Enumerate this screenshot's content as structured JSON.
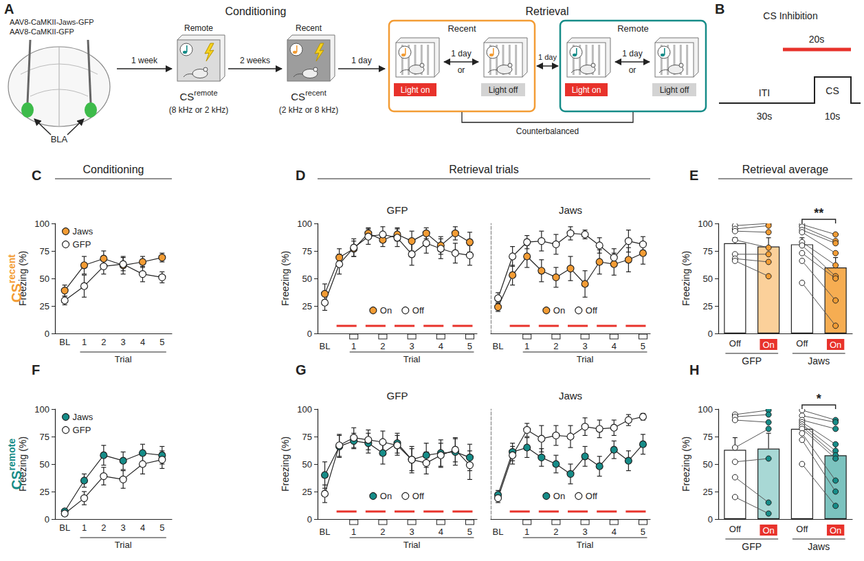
{
  "figure": {
    "column_heads": [
      "Conditioning",
      "Retrieval trials",
      "Retrieval average"
    ],
    "row_labels": [
      {
        "text": "CS",
        "sup": "recent",
        "color": "#f39c34"
      },
      {
        "text": "CS",
        "sup": "remote",
        "color": "#168c88"
      }
    ]
  },
  "diagram": {
    "panel_a": {
      "letter": "A",
      "viruses": [
        "AAV8-CaMKII-Jaws-GFP",
        "AAV8-CaMKII-GFP"
      ],
      "region": "BLA",
      "conditioning": {
        "title": "Conditioning",
        "sessions": [
          {
            "label": "Remote",
            "cs": "CS",
            "sup": "remote",
            "tones": "(8 kHz or 2 kHz)",
            "color": "#168c88"
          },
          {
            "label": "Recent",
            "cs": "CS",
            "sup": "recent",
            "tones": "(2 kHz or 8 kHz)",
            "color": "#f39c34"
          }
        ]
      },
      "intervals": [
        "1 week",
        "2 weeks",
        "1 day"
      ],
      "retrieval": {
        "title": "Retrieval",
        "between": "1 day",
        "blocks": [
          {
            "label": "Recent",
            "color": "#f39c34"
          },
          {
            "label": "Remote",
            "color": "#168c88"
          }
        ],
        "light_on": "Light on",
        "light_off": "Light off",
        "gap": "1 day",
        "or": "or",
        "counterbalanced": "Counterbalanced"
      }
    },
    "panel_b": {
      "letter": "B",
      "title": "CS Inhibition",
      "light": "20s",
      "epochs": [
        {
          "label": "ITI",
          "duration": "30s"
        },
        {
          "label": "CS",
          "duration": "10s"
        }
      ]
    }
  },
  "chart_data": [
    {
      "letter": "C",
      "type": "line",
      "categories": [
        "BL",
        "1",
        "2",
        "3",
        "4",
        "5"
      ],
      "x_label": "Trial",
      "y_label": "Freezing (%)",
      "ylim": [
        0,
        100
      ],
      "yticks": [
        0,
        25,
        50,
        75,
        100
      ],
      "grid": false,
      "legend": "upper left",
      "series": [
        {
          "name": "Jaws",
          "color": "#f39c34",
          "marker": "circle",
          "values": [
            39,
            62,
            68,
            62,
            65,
            69
          ],
          "errors": [
            5,
            8,
            7,
            8,
            5,
            4
          ]
        },
        {
          "name": "GFP",
          "color": "#ffffff",
          "marker": "circle",
          "values": [
            30,
            43,
            61,
            63,
            54,
            51
          ],
          "errors": [
            4,
            10,
            7,
            6,
            7,
            5
          ]
        }
      ]
    },
    {
      "letter": "D",
      "type": "line",
      "title": "GFP",
      "categories": [
        "BL",
        null,
        "1",
        null,
        "2",
        null,
        "3",
        null,
        "4",
        null,
        "5"
      ],
      "x_label": "Trial",
      "y_label": "Freezing (%)",
      "ylim": [
        0,
        100
      ],
      "yticks": [
        0,
        25,
        50,
        75,
        100
      ],
      "grid": false,
      "legend": "lower center",
      "series": [
        {
          "name": "On",
          "color": "#f39c34",
          "marker": "circle",
          "values": [
            36,
            69,
            77,
            91,
            85,
            90,
            84,
            91,
            80,
            91,
            83
          ],
          "errors": [
            9,
            8,
            7,
            5,
            6,
            6,
            9,
            5,
            8,
            6,
            9
          ]
        },
        {
          "name": "Off",
          "color": "#ffffff",
          "marker": "circle",
          "values": [
            28,
            63,
            78,
            88,
            90,
            87,
            72,
            82,
            77,
            73,
            71
          ],
          "errors": [
            7,
            9,
            8,
            7,
            7,
            8,
            10,
            9,
            9,
            9,
            9
          ]
        }
      ]
    },
    {
      "type": "line",
      "title": "Jaws",
      "categories": [
        "BL",
        null,
        "1",
        null,
        "2",
        null,
        "3",
        null,
        "4",
        null,
        "5"
      ],
      "x_label": "Trial",
      "ylim": [
        0,
        100
      ],
      "tick_labels": "x",
      "grid": false,
      "legend": "lower center",
      "series": [
        {
          "name": "On",
          "color": "#f39c34",
          "marker": "circle",
          "values": [
            24,
            53,
            70,
            57,
            51,
            59,
            45,
            65,
            63,
            67,
            73
          ],
          "errors": [
            4,
            9,
            10,
            10,
            9,
            11,
            12,
            11,
            10,
            11,
            10
          ]
        },
        {
          "name": "Off",
          "color": "#ffffff",
          "marker": "circle",
          "values": [
            32,
            70,
            83,
            84,
            81,
            91,
            90,
            80,
            69,
            84,
            81
          ],
          "errors": [
            5,
            9,
            6,
            9,
            9,
            6,
            4,
            7,
            8,
            10,
            7
          ]
        }
      ]
    },
    {
      "letter": "E",
      "type": "bar",
      "categories": [
        "Off",
        "On",
        "Off",
        "On"
      ],
      "groups": [
        "GFP",
        "Jaws"
      ],
      "y_label": "Freezing (%)",
      "ylim": [
        0,
        100
      ],
      "yticks": [
        0,
        25,
        50,
        75,
        100
      ],
      "grid": false,
      "values": [
        82,
        79,
        81,
        60
      ],
      "errors": [
        5,
        8,
        6,
        9
      ],
      "colors": [
        "#ffffff",
        "#fbd09a",
        "#ffffff",
        "#f6ad52"
      ],
      "color": "#f39c34",
      "points": [
        [
          98,
          95,
          93,
          85,
          72,
          68,
          66
        ],
        [
          100,
          98,
          92,
          78,
          72,
          65,
          52
        ],
        [
          99,
          97,
          94,
          92,
          83,
          80,
          73,
          66,
          46
        ],
        [
          90,
          84,
          82,
          73,
          62,
          52,
          50,
          30,
          7
        ]
      ],
      "significance": [
        {
          "group": "Jaws",
          "label": "**"
        }
      ]
    },
    {
      "letter": "F",
      "type": "line",
      "categories": [
        "BL",
        "1",
        "2",
        "3",
        "4",
        "5"
      ],
      "x_label": "Trial",
      "y_label": "Freezing (%)",
      "ylim": [
        0,
        100
      ],
      "yticks": [
        0,
        25,
        50,
        75,
        100
      ],
      "grid": false,
      "legend": "upper left",
      "series": [
        {
          "name": "Jaws",
          "color": "#168c88",
          "marker": "circle",
          "values": [
            7,
            35,
            58,
            53,
            60,
            58
          ],
          "errors": [
            2,
            6,
            9,
            8,
            8,
            8
          ]
        },
        {
          "name": "GFP",
          "color": "#ffffff",
          "marker": "circle",
          "values": [
            5,
            19,
            39,
            36,
            50,
            54
          ],
          "errors": [
            2,
            6,
            8,
            8,
            9,
            8
          ]
        }
      ]
    },
    {
      "letter": "G",
      "type": "line",
      "title": "GFP",
      "categories": [
        "BL",
        null,
        "1",
        null,
        "2",
        null,
        "3",
        null,
        "4",
        null,
        "5"
      ],
      "x_label": "Trial",
      "y_label": "Freezing (%)",
      "ylim": [
        0,
        100
      ],
      "yticks": [
        0,
        25,
        50,
        75,
        100
      ],
      "grid": false,
      "legend": "lower center",
      "series": [
        {
          "name": "On",
          "color": "#168c88",
          "marker": "circle",
          "values": [
            40,
            66,
            71,
            69,
            60,
            69,
            54,
            58,
            60,
            61,
            56
          ],
          "errors": [
            12,
            10,
            7,
            9,
            10,
            9,
            12,
            11,
            12,
            12,
            12
          ]
        },
        {
          "name": "Off",
          "color": "#ffffff",
          "marker": "circle",
          "values": [
            23,
            67,
            74,
            72,
            70,
            67,
            54,
            51,
            58,
            63,
            49
          ],
          "errors": [
            8,
            10,
            9,
            9,
            10,
            9,
            10,
            10,
            11,
            11,
            13
          ]
        }
      ]
    },
    {
      "type": "line",
      "title": "Jaws",
      "categories": [
        "BL",
        null,
        "1",
        null,
        "2",
        null,
        "3",
        null,
        "4",
        null,
        "5"
      ],
      "x_label": "Trial",
      "ylim": [
        0,
        100
      ],
      "tick_labels": "x",
      "grid": false,
      "legend": "lower center",
      "series": [
        {
          "name": "On",
          "color": "#168c88",
          "marker": "circle",
          "values": [
            22,
            61,
            65,
            56,
            50,
            41,
            57,
            48,
            63,
            53,
            68
          ],
          "errors": [
            4,
            8,
            9,
            8,
            8,
            9,
            9,
            9,
            8,
            9,
            9
          ]
        },
        {
          "name": "Off",
          "color": "#ffffff",
          "marker": "circle",
          "values": [
            19,
            58,
            81,
            73,
            76,
            75,
            84,
            82,
            83,
            90,
            93
          ],
          "errors": [
            4,
            8,
            6,
            12,
            9,
            10,
            8,
            8,
            7,
            5,
            3
          ]
        }
      ]
    },
    {
      "letter": "H",
      "type": "bar",
      "categories": [
        "Off",
        "On",
        "Off",
        "On"
      ],
      "groups": [
        "GFP",
        "Jaws"
      ],
      "y_label": "Freezing (%)",
      "ylim": [
        0,
        100
      ],
      "yticks": [
        0,
        25,
        50,
        75,
        100
      ],
      "grid": false,
      "values": [
        63,
        64,
        82,
        58
      ],
      "errors": [
        11,
        14,
        5,
        9
      ],
      "colors": [
        "#ffffff",
        "#a8d8d5",
        "#ffffff",
        "#7cc3bf"
      ],
      "color": "#168c88",
      "points": [
        [
          95,
          93,
          90,
          65,
          52,
          38,
          20
        ],
        [
          99,
          95,
          88,
          82,
          55,
          15,
          5
        ],
        [
          99,
          94,
          90,
          88,
          86,
          84,
          82,
          78,
          72,
          50
        ],
        [
          90,
          88,
          82,
          68,
          62,
          58,
          55,
          35,
          25,
          12
        ]
      ],
      "significance": [
        {
          "group": "Jaws",
          "label": "*"
        }
      ]
    }
  ]
}
